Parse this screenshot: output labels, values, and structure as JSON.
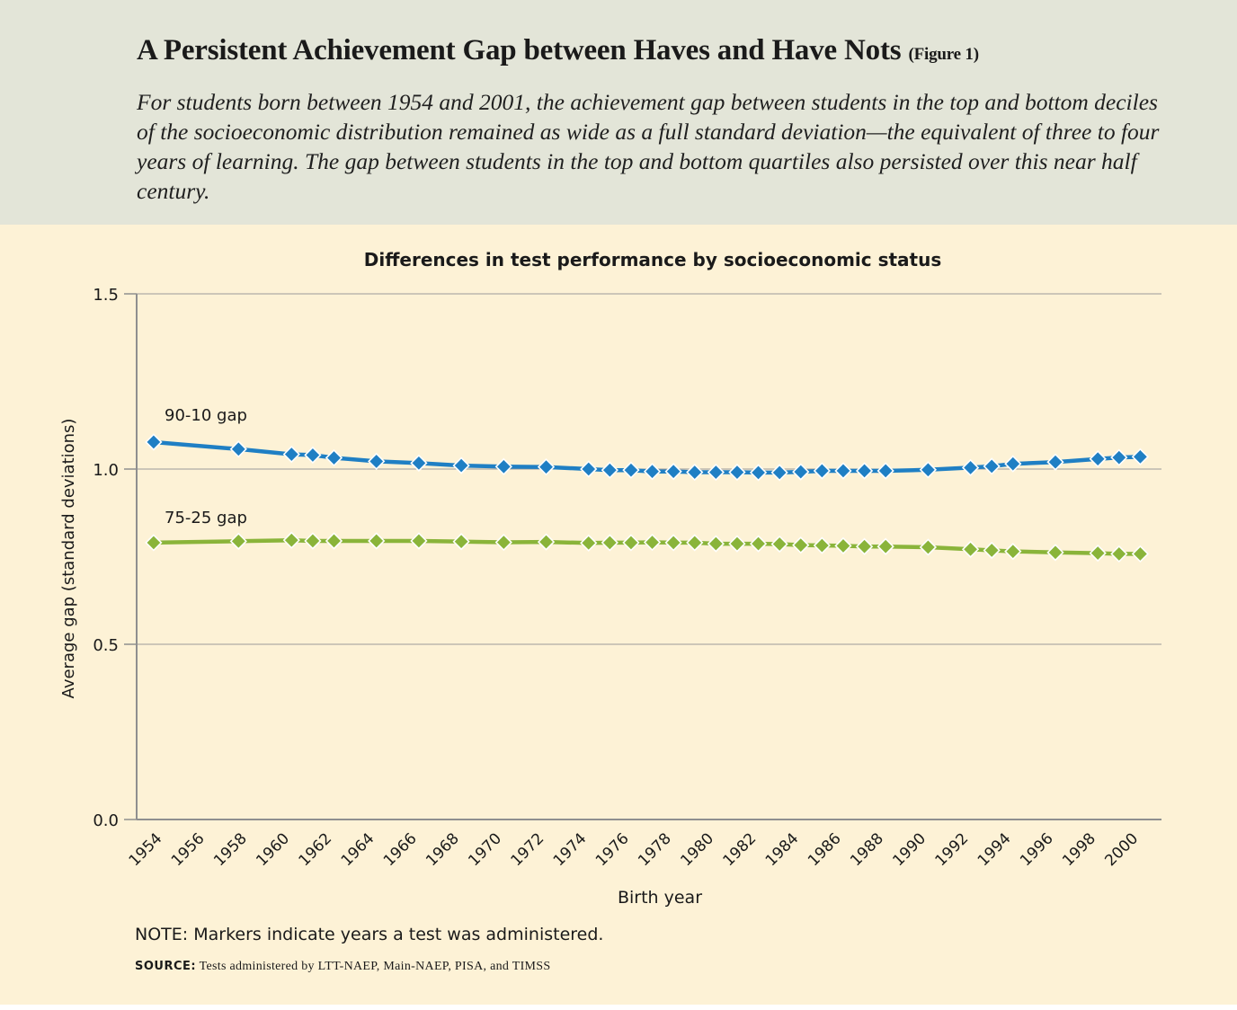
{
  "figure": {
    "title": "A Persistent Achievement Gap between Haves and Have Nots",
    "figure_label": "(Figure 1)",
    "subtitle": "For students born between 1954 and 2001, the achievement gap between students in the top and bottom deciles of the socioeconomic distribution remained as wide as a full standard deviation—the equivalent of three to four years of learning. The gap between students in the top and bottom quartiles also persisted over this near half century.",
    "note": "NOTE: Markers indicate years a test was administered.",
    "source_label": "SOURCE:",
    "source_text": "Tests administered by LTT-NAEP, Main-NAEP, PISA, and TIMSS"
  },
  "colors": {
    "header_bg": "#e3e5d8",
    "panel_bg": "#fdf2d6",
    "series_90_10": "#1f7fc4",
    "series_75_25": "#8ab43a",
    "axis": "#8f8f8f",
    "grid": "#9a9a9a"
  },
  "chart_data": {
    "type": "line",
    "title": "Differences in test performance by socioeconomic status",
    "xlabel": "Birth year",
    "ylabel": "Average gap (standard deviations)",
    "xlim": [
      1953.2,
      2001.5
    ],
    "ylim": [
      0,
      1.5
    ],
    "yticks": [
      "0.0",
      "0.5",
      "1.0",
      "1.5"
    ],
    "ytick_values": [
      0,
      0.5,
      1.0,
      1.5
    ],
    "xticks": [
      "1954",
      "1956",
      "1958",
      "1960",
      "1962",
      "1964",
      "1966",
      "1968",
      "1970",
      "1972",
      "1974",
      "1976",
      "1978",
      "1980",
      "1982",
      "1984",
      "1986",
      "1988",
      "1990",
      "1992",
      "1994",
      "1996",
      "1998",
      "2000"
    ],
    "xtick_values": [
      1954,
      1956,
      1958,
      1960,
      1962,
      1964,
      1966,
      1968,
      1970,
      1972,
      1974,
      1976,
      1978,
      1980,
      1982,
      1984,
      1986,
      1988,
      1990,
      1992,
      1994,
      1996,
      1998,
      2000
    ],
    "grid": "horizontal",
    "marker": "diamond",
    "series": [
      {
        "name": "90-10 gap",
        "color": "#1f7fc4",
        "x": [
          1954,
          1958,
          1960.5,
          1961.5,
          1962.5,
          1964.5,
          1966.5,
          1968.5,
          1970.5,
          1972.5,
          1974.5,
          1975.5,
          1976.5,
          1977.5,
          1978.5,
          1979.5,
          1980.5,
          1981.5,
          1982.5,
          1983.5,
          1984.5,
          1985.5,
          1986.5,
          1987.5,
          1988.5,
          1990.5,
          1992.5,
          1993.5,
          1994.5,
          1996.5,
          1998.5,
          1999.5,
          2000.5
        ],
        "y": [
          1.077,
          1.057,
          1.042,
          1.04,
          1.032,
          1.022,
          1.017,
          1.01,
          1.007,
          1.006,
          1.0,
          0.997,
          0.997,
          0.993,
          0.993,
          0.991,
          0.991,
          0.991,
          0.99,
          0.99,
          0.992,
          0.995,
          0.995,
          0.995,
          0.995,
          0.998,
          1.004,
          1.008,
          1.015,
          1.02,
          1.029,
          1.033,
          1.035
        ]
      },
      {
        "name": "75-25 gap",
        "color": "#8ab43a",
        "x": [
          1954,
          1958,
          1960.5,
          1961.5,
          1962.5,
          1964.5,
          1966.5,
          1968.5,
          1970.5,
          1972.5,
          1974.5,
          1975.5,
          1976.5,
          1977.5,
          1978.5,
          1979.5,
          1980.5,
          1981.5,
          1982.5,
          1983.5,
          1984.5,
          1985.5,
          1986.5,
          1987.5,
          1988.5,
          1990.5,
          1992.5,
          1993.5,
          1994.5,
          1996.5,
          1998.5,
          1999.5,
          2000.5
        ],
        "y": [
          0.79,
          0.794,
          0.797,
          0.795,
          0.795,
          0.795,
          0.795,
          0.793,
          0.791,
          0.792,
          0.789,
          0.79,
          0.79,
          0.791,
          0.79,
          0.79,
          0.787,
          0.787,
          0.787,
          0.786,
          0.783,
          0.782,
          0.781,
          0.779,
          0.779,
          0.777,
          0.771,
          0.768,
          0.765,
          0.762,
          0.76,
          0.758,
          0.758
        ]
      }
    ],
    "annotations": [
      {
        "text": "90-10 gap",
        "series": "90-10 gap"
      },
      {
        "text": "75-25 gap",
        "series": "75-25 gap"
      }
    ]
  }
}
